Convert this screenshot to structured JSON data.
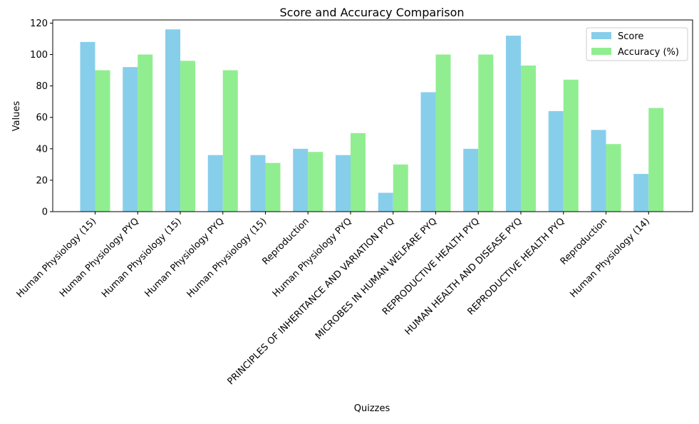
{
  "chart_data": {
    "type": "bar",
    "title": "Score and Accuracy Comparison",
    "xlabel": "Quizzes",
    "ylabel": "Values",
    "ylim": [
      0,
      122
    ],
    "yticks": [
      "0",
      "20",
      "40",
      "60",
      "80",
      "100",
      "120"
    ],
    "legend_position": "top-right",
    "categories": [
      "Human Physiology (15)",
      "Human Physiology PYQ",
      "Human Physiology (15)",
      "Human Physiology PYQ",
      "Human Physiology (15)",
      "Reproduction",
      "Human Physiology PYQ",
      "PRINCIPLES OF INHERITANCE AND VARIATION PYQ",
      "MICROBES IN HUMAN WELFARE  PYQ",
      "REPRODUCTIVE HEALTH PYQ",
      "HUMAN HEALTH AND DISEASE PYQ",
      "REPRODUCTIVE HEALTH PYQ",
      "Reproduction",
      "Human Physiology (14)"
    ],
    "series": [
      {
        "name": "Score",
        "color": "#87ceeb",
        "values": [
          108,
          92,
          116,
          36,
          36,
          40,
          36,
          12,
          76,
          40,
          112,
          64,
          52,
          24
        ]
      },
      {
        "name": "Accuracy (%)",
        "color": "#90ee90",
        "values": [
          90,
          100,
          96,
          90,
          31,
          38,
          50,
          30,
          100,
          100,
          93,
          84,
          43,
          66
        ]
      }
    ]
  }
}
